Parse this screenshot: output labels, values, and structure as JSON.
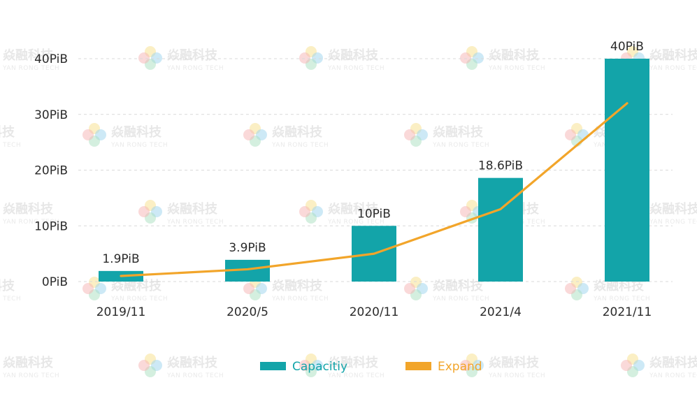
{
  "watermark": {
    "title": "焱融科技",
    "subtitle": "YAN RONG TECH"
  },
  "chart_data": {
    "type": "bar",
    "categories": [
      "2019/11",
      "2020/5",
      "2020/11",
      "2021/4",
      "2021/11"
    ],
    "ylim": [
      0,
      40
    ],
    "y_ticks": [
      0,
      10,
      20,
      30,
      40
    ],
    "y_tick_labels": [
      "0PiB",
      "10PiB",
      "20PiB",
      "30PiB",
      "40PiB"
    ],
    "grid": true,
    "legend_position": "bottom-center",
    "series": [
      {
        "name": "Capacitiy",
        "type": "bar",
        "color": "#13a4a9",
        "values": [
          1.9,
          3.9,
          10,
          18.6,
          40
        ],
        "labels": [
          "1.9PiB",
          "3.9PiB",
          "10PiB",
          "18.6PiB",
          "40PiB"
        ]
      },
      {
        "name": "Expand",
        "type": "line",
        "color": "#f2a52a",
        "values": [
          1,
          2.2,
          5,
          13,
          32
        ]
      }
    ]
  }
}
